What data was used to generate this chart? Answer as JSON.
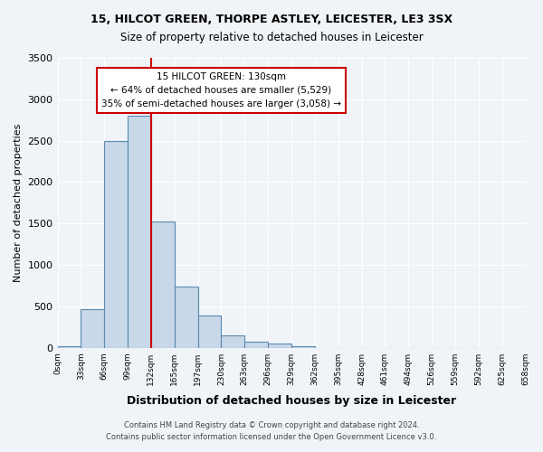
{
  "title_line1": "15, HILCOT GREEN, THORPE ASTLEY, LEICESTER, LE3 3SX",
  "title_line2": "Size of property relative to detached houses in Leicester",
  "xlabel": "Distribution of detached houses by size in Leicester",
  "ylabel": "Number of detached properties",
  "bin_labels": [
    "0sqm",
    "33sqm",
    "66sqm",
    "99sqm",
    "132sqm",
    "165sqm",
    "197sqm",
    "230sqm",
    "263sqm",
    "296sqm",
    "329sqm",
    "362sqm",
    "395sqm",
    "428sqm",
    "461sqm",
    "494sqm",
    "526sqm",
    "559sqm",
    "592sqm",
    "625sqm",
    "658sqm"
  ],
  "bar_values": [
    20,
    470,
    2500,
    2800,
    1520,
    740,
    390,
    145,
    75,
    55,
    20,
    0,
    0,
    0,
    0,
    0,
    0,
    0,
    0,
    0
  ],
  "bar_color": "#c8d8e8",
  "bar_edge_color": "#5a8ab0",
  "reference_line_x": 4,
  "reference_line_label": "132sqm",
  "ylim": [
    0,
    3500
  ],
  "yticks": [
    0,
    500,
    1000,
    1500,
    2000,
    2500,
    3000,
    3500
  ],
  "annotation_title": "15 HILCOT GREEN: 130sqm",
  "annotation_line2": "← 64% of detached houses are smaller (5,529)",
  "annotation_line3": "35% of semi-detached houses are larger (3,058) →",
  "annotation_box_color": "#ffffff",
  "annotation_box_edge_color": "#cc0000",
  "vline_color": "#cc0000",
  "footer_line1": "Contains HM Land Registry data © Crown copyright and database right 2024.",
  "footer_line2": "Contains public sector information licensed under the Open Government Licence v3.0.",
  "background_color": "#f0f4f8",
  "grid_color": "#ffffff",
  "fig_width": 6.0,
  "fig_height": 5.0
}
